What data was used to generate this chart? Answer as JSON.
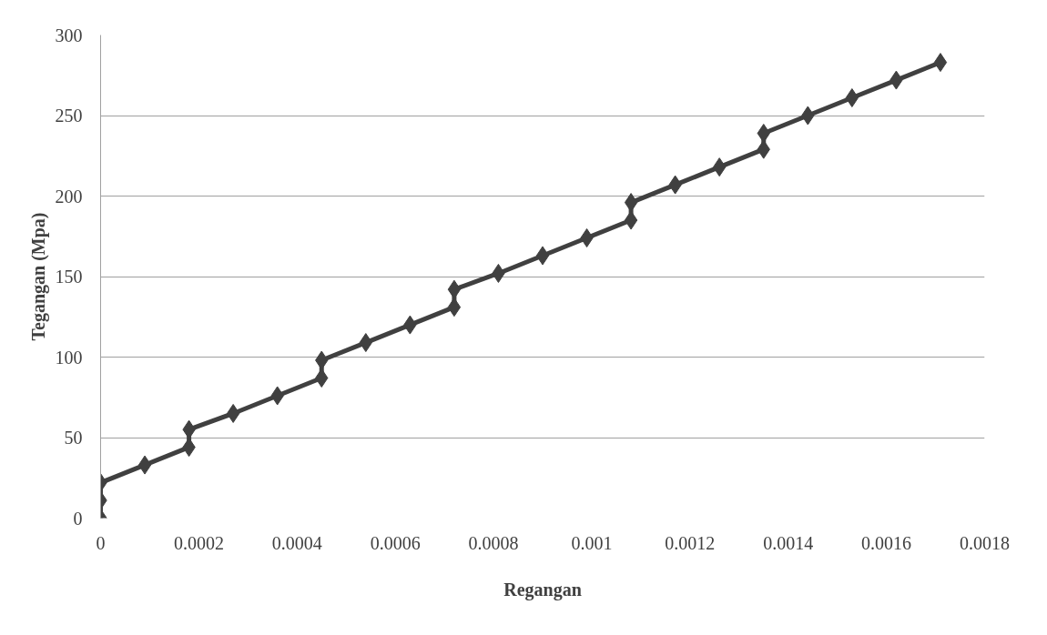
{
  "chart_data": {
    "type": "line",
    "xlabel": "Regangan",
    "ylabel": "Tegangan (Mpa)",
    "x": [
      0,
      0,
      0,
      9e-05,
      0.00018,
      0.00018,
      0.00027,
      0.00036,
      0.00045,
      0.00045,
      0.00054,
      0.00063,
      0.00072,
      0.00072,
      0.00081,
      0.0009,
      0.00099,
      0.00108,
      0.00108,
      0.00117,
      0.00126,
      0.00135,
      0.00135,
      0.00144,
      0.00153,
      0.00162,
      0.00171
    ],
    "series": [
      {
        "color": "#404040",
        "values": [
          0,
          11,
          22,
          33,
          44,
          55,
          65,
          76,
          87,
          98,
          109,
          120,
          131,
          142,
          152,
          163,
          174,
          185,
          196,
          207,
          218,
          229,
          239,
          250,
          261,
          272,
          283
        ]
      }
    ],
    "xlim": [
      0,
      0.0018
    ],
    "xticks": [
      0,
      0.0002,
      0.0004,
      0.0006,
      0.0008,
      0.001,
      0.0012,
      0.0014,
      0.0016,
      0.0018
    ],
    "ylim": [
      0,
      300
    ],
    "yticks": [
      0,
      50,
      100,
      150,
      200,
      250,
      300
    ],
    "grid": "y",
    "marker": "diamond",
    "line_style": "solid"
  }
}
